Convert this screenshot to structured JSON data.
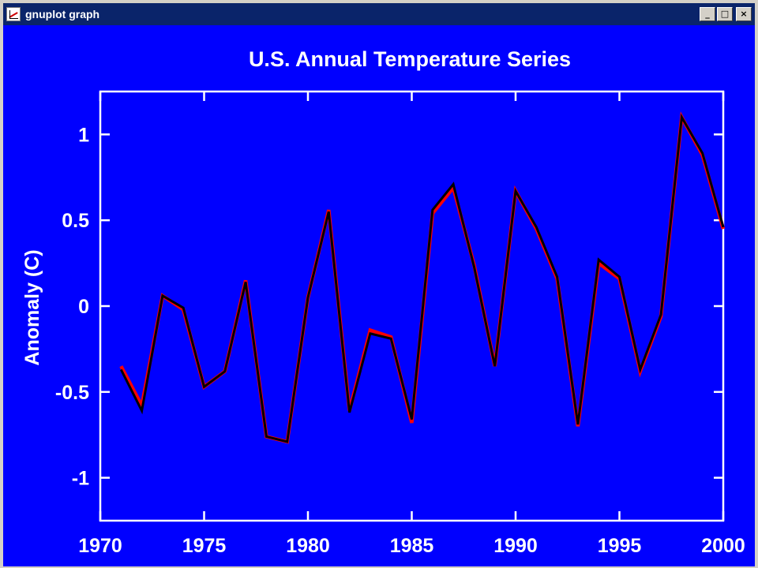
{
  "window": {
    "title": "gnuplot graph",
    "controls": {
      "minimize": "_",
      "maximize": "□",
      "close": "×"
    }
  },
  "colors": {
    "background": "#0000ff",
    "axes": "#ffffff",
    "series_red": "#ff0000",
    "series_black": "#000000"
  },
  "chart_data": {
    "type": "line",
    "title": "U.S. Annual Temperature Series",
    "xlabel": "",
    "ylabel": "Anomaly (C)",
    "xlim": [
      1970,
      2000
    ],
    "ylim": [
      -1.25,
      1.25
    ],
    "xticks": [
      1970,
      1975,
      1980,
      1985,
      1990,
      1995,
      2000
    ],
    "yticks": [
      -1,
      -0.5,
      0,
      0.5,
      1
    ],
    "grid": false,
    "legend": "none",
    "x": [
      1971,
      1972,
      1973,
      1974,
      1975,
      1976,
      1977,
      1978,
      1979,
      1980,
      1981,
      1982,
      1983,
      1984,
      1985,
      1986,
      1987,
      1988,
      1989,
      1990,
      1991,
      1992,
      1993,
      1994,
      1995,
      1996,
      1997,
      1998,
      1999,
      2000
    ],
    "series": [
      {
        "color": "#ff0000",
        "values": [
          -0.35,
          -0.58,
          0.06,
          -0.02,
          -0.47,
          -0.38,
          0.15,
          -0.76,
          -0.79,
          0.05,
          0.56,
          -0.61,
          -0.14,
          -0.18,
          -0.68,
          0.54,
          0.69,
          0.24,
          -0.35,
          0.67,
          0.45,
          0.16,
          -0.7,
          0.25,
          0.16,
          -0.38,
          -0.06,
          1.1,
          0.88,
          0.45
        ]
      },
      {
        "color": "#000000",
        "values": [
          -0.37,
          -0.61,
          0.06,
          -0.01,
          -0.47,
          -0.38,
          0.14,
          -0.76,
          -0.79,
          0.05,
          0.55,
          -0.62,
          -0.16,
          -0.19,
          -0.66,
          0.56,
          0.71,
          0.23,
          -0.35,
          0.67,
          0.46,
          0.17,
          -0.69,
          0.27,
          0.17,
          -0.37,
          -0.05,
          1.1,
          0.89,
          0.46
        ]
      }
    ]
  }
}
